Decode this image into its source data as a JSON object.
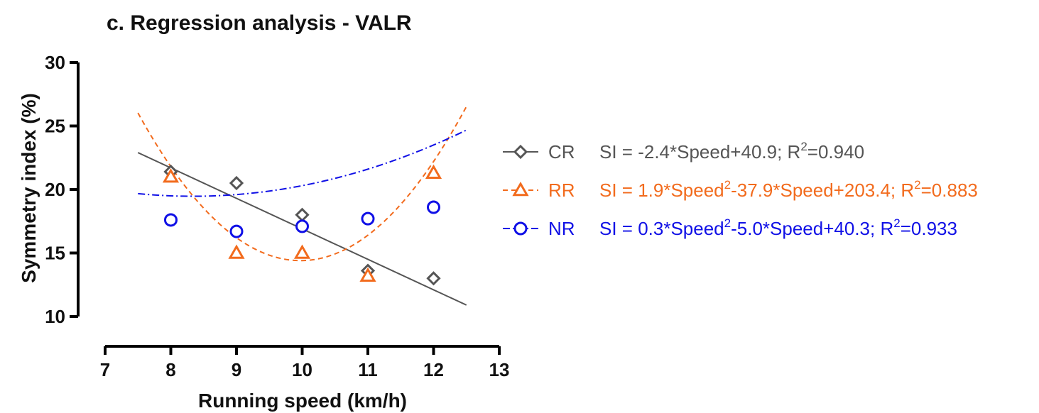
{
  "chart_data": {
    "type": "scatter",
    "title": "c. Regression analysis - VALR",
    "xlabel": "Running speed (km/h)",
    "ylabel": "Symmetry index (%)",
    "xlim": [
      7,
      13
    ],
    "ylim": [
      10,
      30
    ],
    "xticks": [
      "7",
      "8",
      "9",
      "10",
      "11",
      "12",
      "13"
    ],
    "yticks": [
      "10",
      "15",
      "20",
      "25",
      "30"
    ],
    "grid": false,
    "legend_position": "right",
    "series": [
      {
        "name": "CR",
        "color": "#555555",
        "marker": "diamond",
        "line_style": "solid",
        "x": [
          8,
          9,
          10,
          11,
          12
        ],
        "y": [
          21.4,
          20.5,
          18.0,
          13.6,
          13.0
        ],
        "eq_parts": [
          "SI = -2.4*Speed+40.9; R",
          "2",
          "=0.940"
        ],
        "fit": {
          "degree": 1,
          "coefficients": [
            40.9,
            -2.4
          ],
          "x_range": [
            7.5,
            12.5
          ]
        }
      },
      {
        "name": "RR",
        "color": "#F26B1D",
        "marker": "triangle",
        "line_style": "dashed",
        "x": [
          8,
          9,
          10,
          11,
          12
        ],
        "y": [
          21.0,
          15.0,
          15.0,
          13.2,
          21.3
        ],
        "eq_parts": [
          "SI = 1.9*Speed",
          "2",
          "-37.9*Speed+203.4; R",
          "2",
          "=0.883"
        ],
        "fit": {
          "degree": 2,
          "coefficients": [
            203.4,
            -37.9,
            1.9
          ],
          "x_range": [
            7.5,
            12.5
          ]
        }
      },
      {
        "name": "NR",
        "color": "#1010E6",
        "marker": "circle",
        "line_style": "dashdot",
        "x": [
          8,
          9,
          10,
          11,
          12
        ],
        "y": [
          17.6,
          16.7,
          17.1,
          17.7,
          18.6
        ],
        "eq_parts": [
          "SI = 0.3*Speed",
          "2",
          "-5.0*Speed+40.3; R",
          "2",
          "=0.933"
        ],
        "fit": {
          "degree": 2,
          "coefficients": [
            40.3,
            -5.0,
            0.3
          ],
          "x_range": [
            7.5,
            12.5
          ]
        }
      }
    ]
  }
}
